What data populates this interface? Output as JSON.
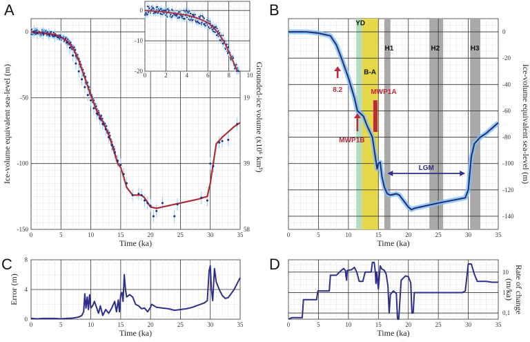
{
  "figure": {
    "panels": [
      "A",
      "B",
      "C",
      "D"
    ]
  },
  "chart_data": [
    {
      "id": "A",
      "type": "scatter",
      "title": "",
      "xlabel": "Time (ka)",
      "ylabel": "Ice-volume equivalent sea-level (m)",
      "y2label": "Grounded-ice volume (x10^6 km^3)",
      "xlim": [
        0,
        35
      ],
      "ylim": [
        -150,
        10
      ],
      "x_ticks": [
        "0",
        "5",
        "10",
        "15",
        "20",
        "25",
        "30",
        "35"
      ],
      "y_ticks": [
        "0",
        "-50",
        "-100",
        "-150"
      ],
      "y2_ticks": [
        "19",
        "39",
        "58"
      ],
      "grid": true,
      "series": [
        {
          "name": "fit",
          "color": "#b02a35",
          "x": [
            0,
            2,
            4,
            5,
            6,
            7,
            8,
            9,
            10,
            11,
            12,
            13,
            14,
            14.5,
            15,
            15.5,
            16,
            17,
            18,
            18.5,
            19,
            20,
            21,
            22,
            25,
            28,
            29.5,
            30,
            30.5,
            31,
            32,
            33,
            34,
            35
          ],
          "y": [
            0,
            -1,
            -2,
            -4,
            -7,
            -12,
            -22,
            -35,
            -48,
            -60,
            -68,
            -78,
            -92,
            -100,
            -103,
            -110,
            -118,
            -124,
            -124,
            -124,
            -126,
            -133,
            -134,
            -133,
            -130,
            -127,
            -125,
            -115,
            -100,
            -85,
            -80,
            -76,
            -72,
            -69
          ]
        },
        {
          "name": "data",
          "color": "#1f2a80",
          "errorbar_color": "#9fd3f0",
          "x": [
            0.5,
            1,
            2,
            3,
            4,
            5,
            6,
            6.5,
            7,
            7.5,
            8,
            8.5,
            9,
            9.5,
            10,
            10.5,
            11,
            11.5,
            12,
            12.5,
            13,
            13.5,
            14,
            14.5,
            15,
            15.5,
            16,
            17,
            18,
            18.5,
            19,
            19.5,
            20,
            20.5,
            21,
            22,
            24,
            24.5,
            28.5,
            29.5,
            30,
            30.5,
            31.5,
            32,
            33,
            34.5
          ],
          "y": [
            0,
            -1,
            -1,
            -2,
            -3,
            -4,
            -8,
            -12,
            -18,
            -24,
            -30,
            -36,
            -42,
            -48,
            -52,
            -58,
            -62,
            -66,
            -70,
            -74,
            -80,
            -86,
            -92,
            -98,
            -101,
            -108,
            -115,
            -124,
            -123,
            -124,
            -128,
            -130,
            -132,
            -140,
            -136,
            -130,
            -140,
            -131,
            -126,
            -128,
            -100,
            -102,
            -84,
            -83,
            -82,
            -70
          ]
        }
      ]
    },
    {
      "id": "A-inset",
      "type": "scatter",
      "xlim": [
        0,
        10
      ],
      "ylim": [
        -20,
        3
      ],
      "x_ticks": [
        "0",
        "2",
        "4",
        "6",
        "8",
        "10"
      ],
      "y_ticks": [
        "0",
        "-10",
        "-20"
      ],
      "series": [
        {
          "name": "fit",
          "color": "#b02a35",
          "x": [
            0,
            1,
            2,
            3,
            4,
            5,
            6,
            6.5,
            7,
            7.5,
            8,
            8.5,
            8.8
          ],
          "y": [
            0,
            -0.2,
            -0.5,
            -1,
            -1.5,
            -2.5,
            -4,
            -5.5,
            -7.5,
            -10,
            -13.5,
            -17.5,
            -20
          ]
        },
        {
          "name": "data",
          "color": "#1f2a80",
          "x": [
            0.3,
            0.8,
            1.2,
            1.7,
            2.3,
            2.8,
            3.3,
            3.8,
            4.3,
            4.8,
            5.3,
            5.8,
            6.2,
            6.7,
            7.1,
            7.5,
            7.9,
            8.2,
            8.5,
            8.9,
            9.1
          ],
          "y": [
            0,
            0.5,
            -0.5,
            1,
            -1,
            0,
            -1,
            -2,
            -1,
            -3,
            -2,
            -4,
            -5,
            -6,
            -9,
            -10,
            -13,
            -15,
            -17,
            -19,
            -20
          ]
        }
      ]
    },
    {
      "id": "B",
      "type": "line",
      "xlabel": "Time (ka)",
      "ylabel": "Ice-volume equivalent sea-level (m)",
      "xlim": [
        0,
        35
      ],
      "ylim": [
        -150,
        10
      ],
      "x_ticks": [
        "0",
        "5",
        "10",
        "15",
        "20",
        "25",
        "30",
        "35"
      ],
      "y_ticks": [
        "0",
        "-20",
        "-40",
        "-60",
        "-80",
        "-100",
        "-120",
        "-140"
      ],
      "grid": true,
      "series": [
        {
          "name": "sea-level",
          "color": "#1f2a80",
          "band_color": "#7fbfe8",
          "x": [
            0,
            3,
            5,
            7,
            8,
            9,
            10,
            11,
            11.5,
            12,
            12.5,
            13,
            14,
            14.5,
            14.8,
            15,
            15.3,
            15.6,
            16,
            16.5,
            17,
            18,
            18.5,
            19,
            20,
            20.5,
            21,
            25,
            29.5,
            30,
            30.5,
            31,
            32,
            33,
            34,
            35
          ],
          "y": [
            0,
            0,
            -1,
            -3,
            -10,
            -22,
            -35,
            -50,
            -60,
            -62,
            -64,
            -70,
            -80,
            -95,
            -104,
            -100,
            -99,
            -110,
            -118,
            -123,
            -124,
            -123,
            -124,
            -127,
            -133,
            -135,
            -134,
            -130,
            -126,
            -120,
            -95,
            -85,
            -80,
            -77,
            -73,
            -69
          ]
        }
      ],
      "shaded_regions": [
        {
          "label": "YD",
          "x": [
            11.3,
            12.3
          ],
          "color": "#b6dcc0"
        },
        {
          "label": "B-A",
          "x": [
            12.3,
            15
          ],
          "color": "#e7d84a"
        },
        {
          "label": "H1",
          "x": [
            16,
            17
          ],
          "color": "#a9a9a9"
        },
        {
          "label": "H2",
          "x": [
            23.5,
            25.8
          ],
          "color": "#a9a9a9"
        },
        {
          "label": "H3",
          "x": [
            30.3,
            32
          ],
          "color": "#a9a9a9"
        }
      ],
      "annotations": [
        {
          "label": "8.2",
          "x": 8.2,
          "type": "arrow-up",
          "color": "#c0283c"
        },
        {
          "label": "MWP1B",
          "x": 11.5,
          "type": "arrow-up",
          "color": "#c0283c"
        },
        {
          "label": "MWP1A",
          "x": 14.5,
          "type": "bar",
          "y": [
            -52,
            -76
          ],
          "color": "#c0283c"
        },
        {
          "label": "LGM",
          "x": [
            16.5,
            29.5
          ],
          "y": -104,
          "type": "double-arrow",
          "color": "#2d2d8a"
        }
      ]
    },
    {
      "id": "C",
      "type": "line",
      "xlabel": "Time (ka)",
      "ylabel": "Error (m)",
      "xlim": [
        0,
        35
      ],
      "ylim": [
        0,
        8
      ],
      "x_ticks": [
        "0",
        "5",
        "10",
        "15",
        "20",
        "25",
        "30",
        "35"
      ],
      "y_ticks": [
        "0",
        "4",
        "8"
      ],
      "grid": true,
      "series": [
        {
          "name": "error",
          "color": "#2d2d8a",
          "x": [
            0,
            1,
            2,
            3,
            4,
            5,
            6,
            7,
            8,
            8.5,
            8.8,
            9,
            9.2,
            9.4,
            9.6,
            9.8,
            10,
            10.3,
            10.6,
            11,
            11.3,
            11.6,
            12,
            12.5,
            13,
            13.5,
            14,
            14.3,
            14.6,
            14.8,
            15,
            15.2,
            15.4,
            15.6,
            15.8,
            16,
            16.5,
            17,
            17.5,
            18,
            18.5,
            19,
            19.5,
            20,
            20.2,
            21,
            22,
            23,
            24,
            25,
            26,
            27,
            28,
            29,
            29.5,
            29.8,
            30,
            30.2,
            30.4,
            30.7,
            31,
            31.5,
            32,
            32.5,
            33,
            34,
            35
          ],
          "y": [
            0.1,
            0.05,
            0.1,
            0.1,
            0.1,
            0.05,
            0.1,
            0.15,
            0.3,
            0.5,
            1,
            3.4,
            1.5,
            3,
            1.3,
            3.3,
            1.5,
            1.8,
            2.4,
            1.5,
            0.8,
            1.8,
            0.5,
            1.3,
            0.8,
            1.5,
            2.4,
            1.0,
            2.6,
            1.0,
            3.3,
            3.6,
            2.4,
            6.0,
            4.0,
            3.0,
            3.3,
            3.0,
            2.0,
            1.8,
            1.4,
            1.5,
            1.0,
            1.6,
            2.0,
            1.6,
            1.5,
            1.4,
            1.2,
            1.3,
            1.4,
            1.6,
            1.9,
            2.2,
            2.5,
            6.5,
            7.2,
            4.0,
            2.5,
            6.8,
            5.0,
            4.0,
            3.2,
            2.8,
            2.9,
            4.0,
            5.6
          ]
        }
      ]
    },
    {
      "id": "D",
      "type": "line",
      "xlabel": "Time (ka)",
      "ylabel": "Rate of change (m/ka)",
      "y_scale": "log",
      "xlim": [
        0,
        35
      ],
      "ylim": [
        0.05,
        40
      ],
      "x_ticks": [
        "0",
        "5",
        "10",
        "15",
        "20",
        "25",
        "30",
        "35"
      ],
      "y_ticks": [
        "0,1",
        "1",
        "10"
      ],
      "grid": true,
      "series": [
        {
          "name": "rate",
          "color": "#2d2d8a",
          "x": [
            0,
            0.6,
            0.8,
            2.3,
            2.5,
            4.7,
            4.9,
            6.8,
            7.0,
            8.0,
            8.2,
            8.8,
            9.2,
            9.5,
            9.6,
            9.7,
            9.8,
            10.5,
            11.0,
            11.4,
            11.8,
            12.4,
            12.8,
            13.8,
            14.0,
            14.3,
            14.5,
            14.6,
            14.7,
            14.8,
            15.0,
            15.3,
            15.6,
            16.0,
            16.3,
            16.6,
            16.8,
            17.0,
            17.5,
            18.0,
            18.2,
            18.4,
            18.8,
            19.5,
            20.0,
            20.4,
            20.6,
            20.8,
            21.0,
            29.0,
            29.5,
            30.0,
            30.5,
            31.0,
            31.5,
            33.0,
            34.0,
            35.0
          ],
          "y": [
            0.05,
            0.06,
            0.06,
            0.06,
            0.45,
            0.45,
            1.2,
            1.2,
            7,
            7,
            8,
            12,
            15,
            12,
            6,
            4,
            12,
            13,
            17,
            10,
            3.5,
            3.5,
            10,
            10,
            30,
            30,
            10,
            2.8,
            10,
            6,
            1.5,
            20,
            14,
            12,
            8,
            2,
            0.1,
            0.8,
            1.2,
            0.9,
            0.05,
            0.05,
            4,
            6.5,
            6,
            3,
            0.1,
            0.1,
            1.0,
            1.0,
            1.2,
            25,
            25,
            8,
            3.5,
            3.5,
            3.2,
            3.2
          ]
        }
      ]
    }
  ]
}
